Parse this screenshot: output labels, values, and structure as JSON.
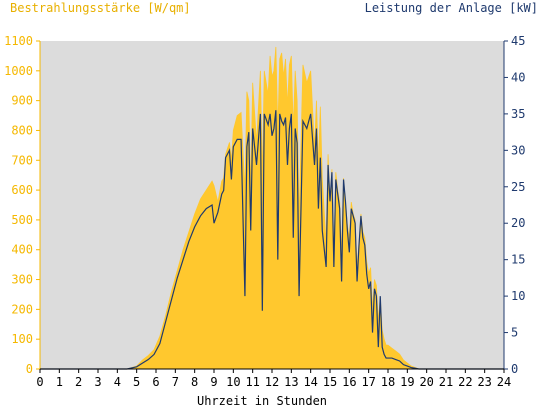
{
  "colors": {
    "plot_bg": "#dcdcdc",
    "irradiance": "#ffc82e",
    "power": "#1f3a6e",
    "left_axis_text": "#f5b800",
    "right_axis_text": "#1f3a6e",
    "x_axis_text": "#000000"
  },
  "chart_data": {
    "type": "area",
    "xlabel": "Uhrzeit in Stunden",
    "ylabel_left": "Bestrahlungsstärke [W/qm]",
    "ylabel_right": "Leistung der Anlage [kW]",
    "xlim": [
      0,
      24
    ],
    "ylim_left": [
      0,
      1100
    ],
    "ylim_right": [
      0,
      45
    ],
    "x_ticks": [
      "0",
      "1",
      "2",
      "3",
      "4",
      "5",
      "6",
      "7",
      "8",
      "9",
      "10",
      "11",
      "12",
      "13",
      "14",
      "15",
      "16",
      "17",
      "18",
      "19",
      "20",
      "21",
      "22",
      "23",
      "24"
    ],
    "y_ticks_left": [
      "0",
      "100",
      "200",
      "300",
      "400",
      "500",
      "600",
      "700",
      "800",
      "900",
      "1000",
      "1100"
    ],
    "y_ticks_right": [
      "0",
      "5",
      "10",
      "15",
      "20",
      "25",
      "30",
      "35",
      "40",
      "45"
    ],
    "grid": false,
    "series": [
      {
        "name": "Bestrahlungsstärke [W/qm]",
        "axis": "left",
        "style": "filled-area",
        "x": [
          0,
          4.5,
          5,
          5.3,
          5.6,
          5.9,
          6.2,
          6.5,
          6.8,
          7.1,
          7.4,
          7.7,
          8,
          8.3,
          8.6,
          8.9,
          9,
          9.2,
          9.4,
          9.5,
          9.6,
          9.8,
          9.9,
          10,
          10.2,
          10.4,
          10.6,
          10.7,
          10.8,
          10.9,
          11,
          11.2,
          11.4,
          11.5,
          11.6,
          11.8,
          11.9,
          12,
          12.1,
          12.2,
          12.3,
          12.4,
          12.5,
          12.6,
          12.7,
          12.8,
          12.9,
          13,
          13.1,
          13.2,
          13.3,
          13.4,
          13.6,
          13.8,
          14,
          14.2,
          14.3,
          14.4,
          14.5,
          14.6,
          14.8,
          14.9,
          15,
          15.1,
          15.2,
          15.3,
          15.4,
          15.5,
          15.6,
          15.7,
          15.8,
          15.9,
          16,
          16.1,
          16.2,
          16.3,
          16.4,
          16.5,
          16.6,
          16.7,
          16.8,
          16.9,
          17,
          17.1,
          17.2,
          17.3,
          17.4,
          17.5,
          17.6,
          17.7,
          17.8,
          17.9,
          18,
          18.2,
          18.4,
          18.6,
          18.8,
          19,
          19.2,
          19.4,
          19.6,
          19.8,
          20,
          20.2,
          20.5,
          24
        ],
        "y": [
          0,
          0,
          10,
          30,
          45,
          65,
          110,
          180,
          260,
          330,
          400,
          460,
          520,
          570,
          600,
          630,
          615,
          560,
          630,
          640,
          720,
          760,
          700,
          800,
          850,
          860,
          600,
          930,
          900,
          600,
          960,
          760,
          1000,
          640,
          1000,
          920,
          1050,
          980,
          1000,
          1080,
          800,
          1040,
          1060,
          980,
          1040,
          880,
          1020,
          1050,
          800,
          1000,
          900,
          500,
          1020,
          960,
          1000,
          740,
          900,
          680,
          880,
          640,
          420,
          720,
          560,
          670,
          380,
          660,
          600,
          560,
          380,
          640,
          560,
          480,
          440,
          560,
          520,
          500,
          340,
          420,
          520,
          460,
          440,
          360,
          320,
          340,
          200,
          300,
          280,
          160,
          240,
          130,
          100,
          80,
          80,
          70,
          60,
          50,
          30,
          20,
          10,
          5,
          0,
          0,
          0,
          0,
          0,
          0
        ]
      },
      {
        "name": "Leistung der Anlage [kW]",
        "axis": "right",
        "style": "line",
        "x": [
          0,
          4.5,
          5,
          5.3,
          5.6,
          5.9,
          6.2,
          6.5,
          6.8,
          7.1,
          7.4,
          7.7,
          8,
          8.3,
          8.6,
          8.9,
          9,
          9.2,
          9.4,
          9.5,
          9.6,
          9.8,
          9.9,
          10,
          10.2,
          10.4,
          10.6,
          10.7,
          10.8,
          10.9,
          11,
          11.2,
          11.4,
          11.5,
          11.6,
          11.8,
          11.9,
          12,
          12.1,
          12.2,
          12.3,
          12.4,
          12.5,
          12.6,
          12.7,
          12.8,
          12.9,
          13,
          13.1,
          13.2,
          13.3,
          13.4,
          13.6,
          13.8,
          14,
          14.2,
          14.3,
          14.4,
          14.5,
          14.6,
          14.8,
          14.9,
          15,
          15.1,
          15.2,
          15.3,
          15.4,
          15.5,
          15.6,
          15.7,
          15.8,
          15.9,
          16,
          16.1,
          16.2,
          16.3,
          16.4,
          16.5,
          16.6,
          16.7,
          16.8,
          16.9,
          17,
          17.1,
          17.2,
          17.3,
          17.4,
          17.5,
          17.6,
          17.7,
          17.8,
          17.9,
          18,
          18.2,
          18.4,
          18.6,
          18.8,
          19,
          19.2,
          19.4,
          19.6,
          19.8,
          20,
          20.2,
          20.5,
          24
        ],
        "y": [
          0,
          0,
          0.3,
          0.8,
          1.3,
          2,
          3.5,
          6.5,
          9.5,
          12.5,
          15,
          17.5,
          19.5,
          21,
          22,
          22.5,
          20,
          21.5,
          24,
          24.5,
          29,
          30,
          26,
          30.5,
          31.5,
          31.5,
          10,
          30.5,
          32.5,
          19,
          33,
          28,
          35,
          8,
          35,
          33.5,
          35,
          32,
          33,
          35.5,
          15,
          35,
          34,
          33.5,
          34.5,
          28,
          33,
          35,
          18,
          33,
          31,
          10,
          34,
          33,
          35,
          28,
          33,
          22,
          29,
          19,
          14,
          28,
          23,
          27,
          14,
          26,
          24,
          22,
          12,
          26,
          23,
          19,
          16,
          22,
          21,
          20,
          12,
          17,
          21,
          18,
          17,
          13,
          11,
          12,
          5,
          11,
          10,
          3,
          10,
          3,
          2,
          1.5,
          1.5,
          1.5,
          1.3,
          1.1,
          0.6,
          0.4,
          0.2,
          0.1,
          0,
          0,
          0,
          0,
          0,
          0
        ]
      }
    ]
  }
}
